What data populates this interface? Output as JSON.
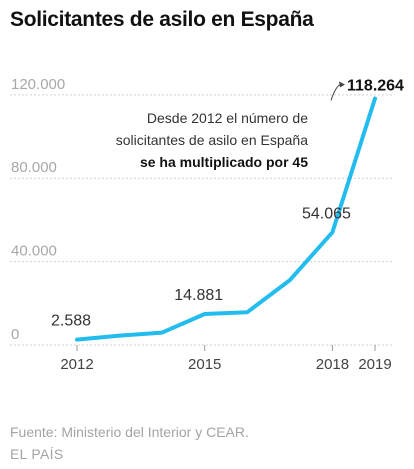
{
  "title": "Solicitantes de asilo en España",
  "footer": {
    "source": "Fuente: Ministerio del Interior y CEAR.",
    "brand": "EL PAÍS"
  },
  "colors": {
    "line": "#22bcee",
    "grid": "#d2d2d2",
    "axis_text": "#a8a8a8",
    "text": "#111111"
  },
  "chart_data": {
    "type": "line",
    "title": "Solicitantes de asilo en España",
    "xlabel": "",
    "ylabel": "",
    "ylim": [
      0,
      130000
    ],
    "xlim": [
      2011.4,
      2019.5
    ],
    "grid": true,
    "y_ticks": [
      {
        "value": 0,
        "label": "0"
      },
      {
        "value": 40000,
        "label": "40.000"
      },
      {
        "value": 80000,
        "label": "80.000"
      },
      {
        "value": 120000,
        "label": "120.000"
      }
    ],
    "x_ticks": [
      {
        "value": 2012,
        "label": "2012"
      },
      {
        "value": 2015,
        "label": "2015"
      },
      {
        "value": 2018,
        "label": "2018"
      },
      {
        "value": 2019,
        "label": "2019"
      }
    ],
    "series": [
      {
        "x": [
          2012,
          2013,
          2014,
          2015,
          2016,
          2017,
          2018,
          2019
        ],
        "values": [
          2588,
          4513,
          5952,
          14881,
          15755,
          31120,
          54065,
          118264
        ]
      }
    ],
    "data_labels": [
      {
        "x": 2012,
        "text": "2.588"
      },
      {
        "x": 2015,
        "text": "14.881"
      },
      {
        "x": 2018,
        "text": "54.065"
      },
      {
        "x": 2019,
        "text": "118.264"
      }
    ],
    "annotation": {
      "lines": [
        "Desde 2012 el número de",
        "solicitantes de asilo en España"
      ],
      "bold_line": "se ha multiplicado por 45"
    }
  }
}
